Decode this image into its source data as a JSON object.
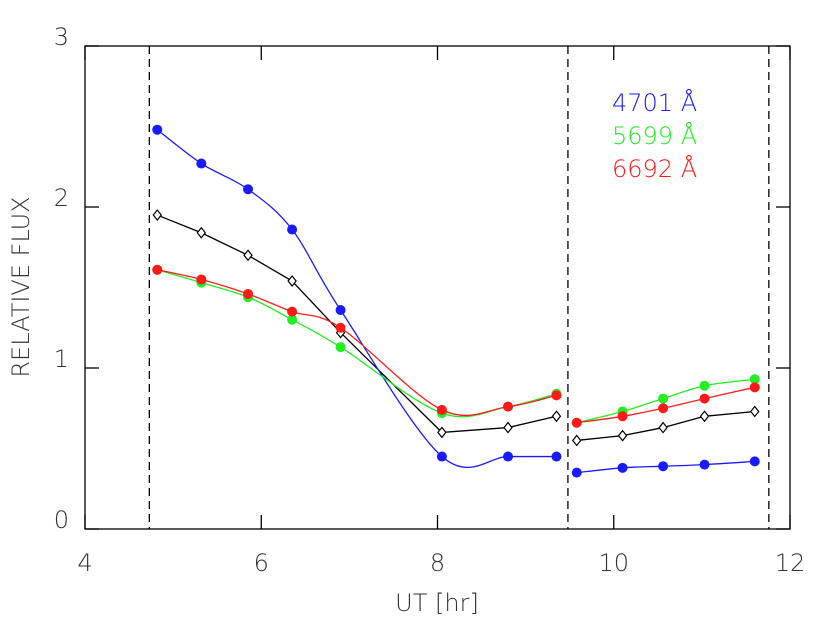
{
  "chart_data": {
    "type": "line",
    "xlabel": "UT [hr]",
    "ylabel": "RELATIVE FLUX",
    "x": [
      4.82,
      5.32,
      5.85,
      6.35,
      6.9,
      8.05,
      8.8,
      9.35,
      9.58,
      10.1,
      10.56,
      11.03,
      11.6
    ],
    "series": [
      {
        "color": "#000000",
        "marker": "diamond",
        "smooth": false,
        "values": [
          1.95,
          1.84,
          1.7,
          1.54,
          1.22,
          0.6,
          0.63,
          0.7,
          0.55,
          0.58,
          0.63,
          0.7,
          0.73
        ]
      },
      {
        "name": "4701 Å",
        "color": "#1a1aff",
        "marker": "circle",
        "smooth": true,
        "values": [
          2.48,
          2.27,
          2.11,
          1.86,
          1.36,
          0.45,
          0.45,
          0.45,
          0.35,
          0.38,
          0.39,
          0.4,
          0.42
        ]
      },
      {
        "name": "5699 Å",
        "color": "#22ee22",
        "marker": "circle",
        "smooth": true,
        "values": [
          1.61,
          1.53,
          1.44,
          1.3,
          1.13,
          0.72,
          0.76,
          0.84,
          0.66,
          0.73,
          0.81,
          0.89,
          0.93
        ]
      },
      {
        "name": "6692 Å",
        "color": "#ff1a1a",
        "marker": "circle",
        "smooth": true,
        "values": [
          1.61,
          1.55,
          1.46,
          1.35,
          1.25,
          0.74,
          0.76,
          0.83,
          0.66,
          0.7,
          0.75,
          0.81,
          0.88
        ]
      }
    ],
    "vlines": [
      4.73,
      9.48,
      11.76
    ],
    "xlim": [
      4,
      12
    ],
    "xticks": [
      4,
      6,
      8,
      10,
      12
    ],
    "ylim": [
      0,
      3
    ],
    "yticks": [
      0,
      1,
      2,
      3
    ],
    "legend": "upper right"
  }
}
